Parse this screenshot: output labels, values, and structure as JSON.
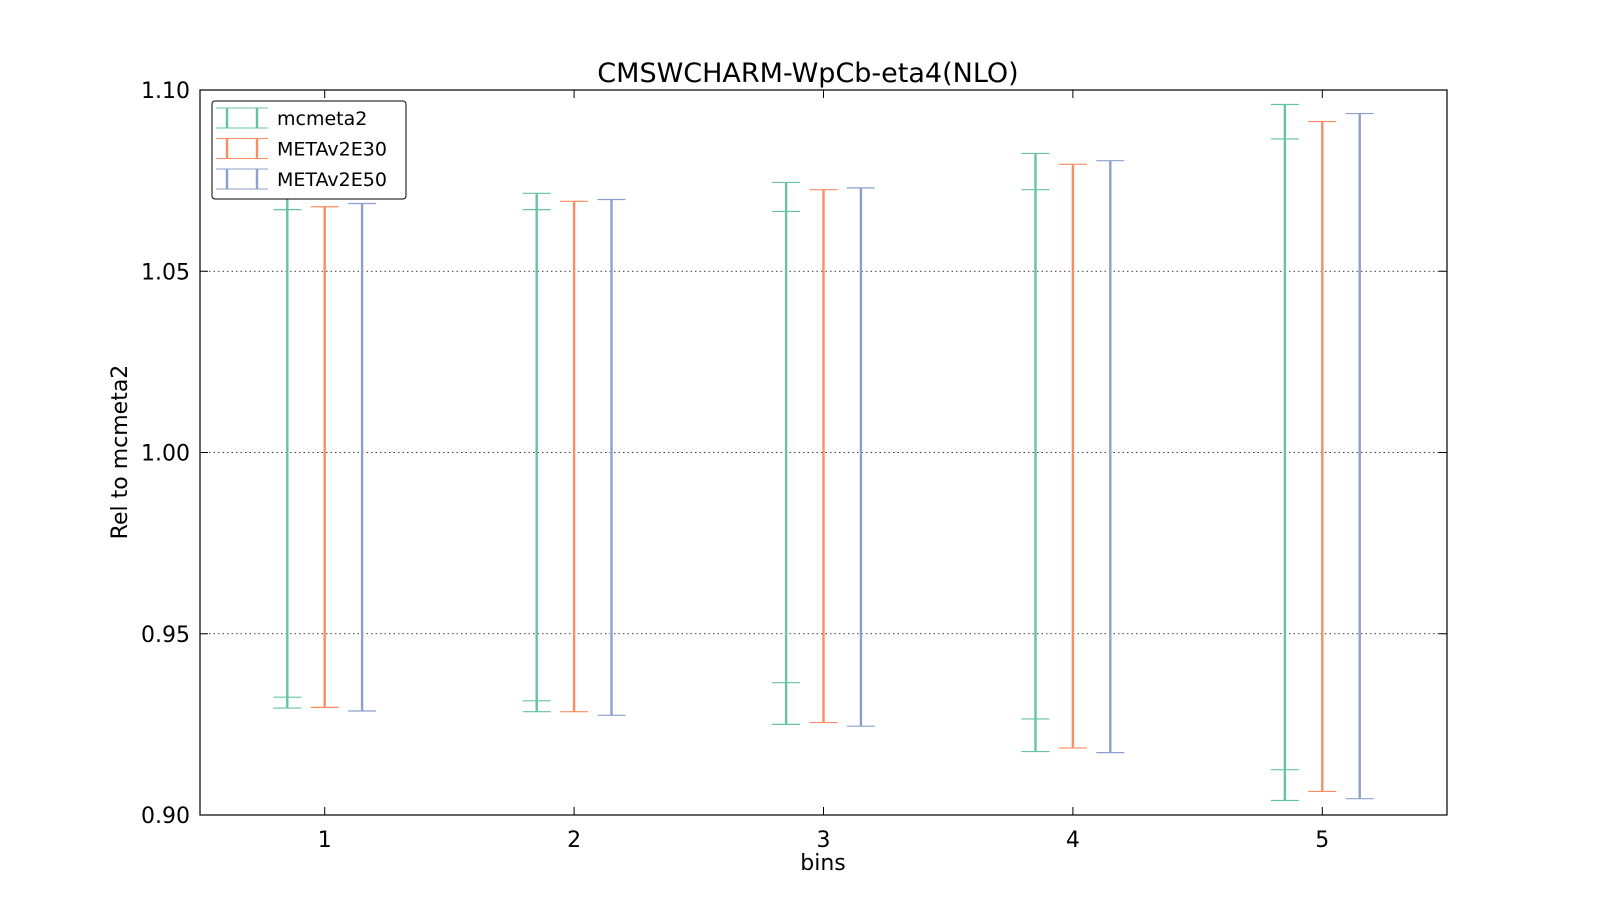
{
  "chart_data": {
    "type": "errorbar",
    "title": "CMSWCHARM-WpCb-eta4(NLO)",
    "xlabel": "bins",
    "ylabel": "Rel to mcmeta2",
    "x_ticks": [
      "1",
      "2",
      "3",
      "4",
      "5"
    ],
    "y_ticks": [
      "0.90",
      "0.95",
      "1.00",
      "1.05",
      "1.10"
    ],
    "xlim": [
      0.5,
      5.5
    ],
    "ylim": [
      0.9,
      1.1
    ],
    "grid": "horizontal dotted",
    "legend_position": "top-left",
    "series": [
      {
        "name": "mcmeta2",
        "color": "#66c2a5",
        "x_offset": -0.15,
        "outer": [
          [
            0.9295,
            1.07
          ],
          [
            0.9285,
            1.0715
          ],
          [
            0.925,
            1.0745
          ],
          [
            0.9175,
            1.0825
          ],
          [
            0.904,
            1.096
          ]
        ],
        "inner": [
          [
            0.9325,
            1.067
          ],
          [
            0.9315,
            1.067
          ],
          [
            0.9365,
            1.0665
          ],
          [
            0.9265,
            1.0725
          ],
          [
            0.9125,
            1.0865
          ]
        ]
      },
      {
        "name": "METAv2E30",
        "color": "#fc8d62",
        "x_offset": 0.0,
        "outer": [
          [
            0.9297,
            1.0678
          ],
          [
            0.9285,
            1.0693
          ],
          [
            0.9255,
            1.0725
          ],
          [
            0.9185,
            1.0795
          ],
          [
            0.9065,
            1.0913
          ]
        ],
        "inner": []
      },
      {
        "name": "METAv2E50",
        "color": "#8da0cb",
        "x_offset": 0.15,
        "outer": [
          [
            0.9287,
            1.0687
          ],
          [
            0.9275,
            1.0698
          ],
          [
            0.9245,
            1.073
          ],
          [
            0.9172,
            1.0805
          ],
          [
            0.9045,
            1.0935
          ]
        ],
        "inner": []
      }
    ]
  }
}
